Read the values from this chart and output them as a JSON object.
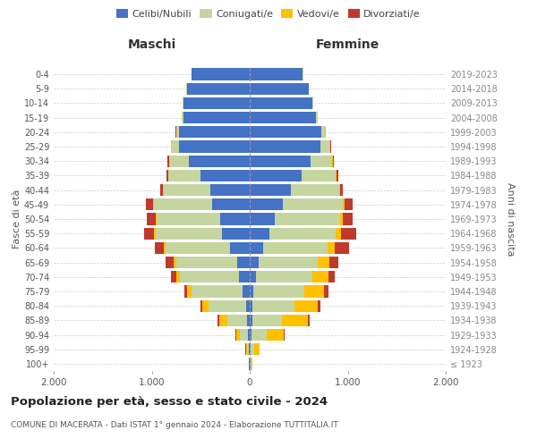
{
  "age_groups": [
    "100+",
    "95-99",
    "90-94",
    "85-89",
    "80-84",
    "75-79",
    "70-74",
    "65-69",
    "60-64",
    "55-59",
    "50-54",
    "45-49",
    "40-44",
    "35-39",
    "30-34",
    "25-29",
    "20-24",
    "15-19",
    "10-14",
    "5-9",
    "0-4"
  ],
  "birth_years": [
    "≤ 1923",
    "1924-1928",
    "1929-1933",
    "1934-1938",
    "1939-1943",
    "1944-1948",
    "1949-1953",
    "1954-1958",
    "1959-1963",
    "1964-1968",
    "1969-1973",
    "1974-1978",
    "1979-1983",
    "1984-1988",
    "1989-1993",
    "1994-1998",
    "1999-2003",
    "2004-2008",
    "2009-2013",
    "2014-2018",
    "2019-2023"
  ],
  "male": {
    "celibi": [
      5,
      10,
      20,
      30,
      40,
      70,
      110,
      130,
      200,
      280,
      300,
      380,
      400,
      500,
      620,
      720,
      720,
      680,
      680,
      640,
      590
    ],
    "coniugati": [
      5,
      20,
      80,
      200,
      380,
      520,
      600,
      620,
      660,
      680,
      650,
      600,
      480,
      330,
      200,
      80,
      30,
      10,
      5,
      5,
      5
    ],
    "vedovi": [
      2,
      10,
      40,
      80,
      60,
      50,
      40,
      30,
      20,
      15,
      10,
      5,
      5,
      3,
      2,
      2,
      1,
      0,
      0,
      0,
      0
    ],
    "divorziati": [
      1,
      5,
      5,
      15,
      20,
      30,
      55,
      75,
      90,
      100,
      90,
      75,
      30,
      20,
      15,
      5,
      3,
      2,
      0,
      0,
      0
    ]
  },
  "female": {
    "nubili": [
      5,
      10,
      20,
      30,
      30,
      40,
      60,
      90,
      140,
      200,
      260,
      340,
      420,
      530,
      620,
      720,
      730,
      680,
      640,
      600,
      540
    ],
    "coniugate": [
      10,
      40,
      150,
      300,
      430,
      520,
      580,
      600,
      650,
      680,
      660,
      610,
      490,
      350,
      220,
      100,
      40,
      15,
      5,
      5,
      5
    ],
    "vedove": [
      10,
      50,
      180,
      260,
      230,
      200,
      160,
      120,
      80,
      50,
      30,
      20,
      10,
      5,
      5,
      3,
      2,
      1,
      0,
      0,
      0
    ],
    "divorziate": [
      1,
      5,
      5,
      20,
      30,
      40,
      70,
      90,
      140,
      155,
      100,
      80,
      30,
      20,
      10,
      5,
      2,
      1,
      0,
      0,
      0
    ]
  },
  "colors": {
    "celibi": "#4472c4",
    "coniugati": "#c5d5a0",
    "vedovi": "#ffc000",
    "divorziati": "#c0392b"
  },
  "xlim": 2000,
  "title": "Popolazione per età, sesso e stato civile - 2024",
  "subtitle": "COMUNE DI MACERATA - Dati ISTAT 1° gennaio 2024 - Elaborazione TUTTITALIA.IT",
  "ylabel_left": "Fasce di età",
  "ylabel_right": "Anni di nascita",
  "xlabel_left": "Maschi",
  "xlabel_right": "Femmine",
  "legend_labels": [
    "Celibi/Nubili",
    "Coniugati/e",
    "Vedovi/e",
    "Divorziati/e"
  ],
  "background_color": "#ffffff",
  "grid_color": "#cccccc"
}
